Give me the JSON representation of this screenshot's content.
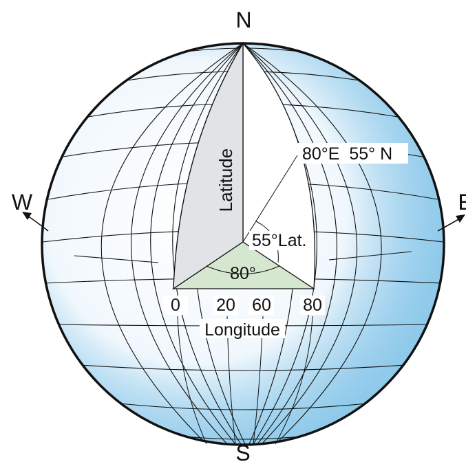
{
  "compass": {
    "north": "N",
    "south": "S",
    "west": "W",
    "east": "E"
  },
  "sector": {
    "latitude_label": "Latitude",
    "longitude_label": "Longitude",
    "point_label": "80°E  55° N",
    "lat_angle_label": "55°Lat.",
    "lon_angle_label": "80°"
  },
  "longitude_ticks": [
    "0",
    "20",
    "60",
    "80"
  ],
  "colors": {
    "globe_edge": "#2a9ad8",
    "globe_center": "#ffffff",
    "latitude_plane": "#e2e3e6",
    "longitude_wedge": "#d5e8cf",
    "outline": "#111111"
  }
}
